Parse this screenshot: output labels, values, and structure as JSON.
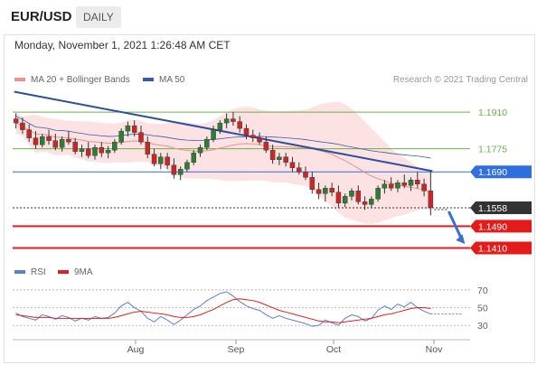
{
  "header": {
    "pair": "EUR/USD",
    "period": "DAILY"
  },
  "datetime": "Monday, November 1, 2021 1:26:48 AM CET",
  "copyright": "Research © 2021 Trading Central",
  "legend": {
    "ma20": {
      "label": "MA 20 + Bollinger Bands",
      "color": "#f0908f"
    },
    "ma50": {
      "label": "MA 50",
      "color": "#3b5ba5"
    },
    "rsi": {
      "label": "RSI",
      "color": "#5b7fd6"
    },
    "ma9": {
      "label": "9MA",
      "color": "#e02020"
    }
  },
  "chart_data": {
    "type": "candlestick",
    "y_range": [
      1.1385,
      1.199
    ],
    "levels": [
      {
        "value": 1.191,
        "label": "1.1910",
        "kind": "resistance",
        "color": "#6ab04c"
      },
      {
        "value": 1.1775,
        "label": "1.1775",
        "kind": "resistance",
        "color": "#6ab04c"
      },
      {
        "value": 1.169,
        "label": "1.1690",
        "kind": "pivot",
        "color": "#2f6fe0"
      },
      {
        "value": 1.1558,
        "label": "1.1558",
        "kind": "last",
        "color": "#333333"
      },
      {
        "value": 1.149,
        "label": "1.1490",
        "kind": "support",
        "color": "#e31b1b"
      },
      {
        "value": 1.141,
        "label": "1.1410",
        "kind": "support",
        "color": "#e31b1b"
      }
    ],
    "x_labels": [
      "Aug",
      "Sep",
      "Oct",
      "Nov"
    ],
    "ohlc": [
      [
        1.1885,
        1.1905,
        1.185,
        1.187
      ],
      [
        1.187,
        1.189,
        1.183,
        1.1845
      ],
      [
        1.1845,
        1.1865,
        1.18,
        1.1815
      ],
      [
        1.1815,
        1.184,
        1.1775,
        1.179
      ],
      [
        1.179,
        1.183,
        1.178,
        1.182
      ],
      [
        1.182,
        1.1845,
        1.179,
        1.1805
      ],
      [
        1.1805,
        1.183,
        1.177,
        1.178
      ],
      [
        1.178,
        1.182,
        1.1765,
        1.181
      ],
      [
        1.181,
        1.184,
        1.179,
        1.18
      ],
      [
        1.18,
        1.1815,
        1.1755,
        1.1765
      ],
      [
        1.1765,
        1.179,
        1.1745,
        1.1775
      ],
      [
        1.1775,
        1.18,
        1.174,
        1.175
      ],
      [
        1.175,
        1.179,
        1.1735,
        1.178
      ],
      [
        1.178,
        1.18,
        1.1745,
        1.176
      ],
      [
        1.176,
        1.1785,
        1.174,
        1.177
      ],
      [
        1.177,
        1.181,
        1.176,
        1.18
      ],
      [
        1.18,
        1.185,
        1.179,
        1.184
      ],
      [
        1.184,
        1.1875,
        1.182,
        1.186
      ],
      [
        1.186,
        1.188,
        1.182,
        1.1835
      ],
      [
        1.1835,
        1.186,
        1.179,
        1.18
      ],
      [
        1.18,
        1.182,
        1.174,
        1.1755
      ],
      [
        1.1755,
        1.1775,
        1.171,
        1.172
      ],
      [
        1.172,
        1.176,
        1.17,
        1.1745
      ],
      [
        1.1745,
        1.176,
        1.17,
        1.1715
      ],
      [
        1.1715,
        1.174,
        1.1665,
        1.168
      ],
      [
        1.168,
        1.171,
        1.166,
        1.17
      ],
      [
        1.17,
        1.1735,
        1.169,
        1.1725
      ],
      [
        1.1725,
        1.177,
        1.1715,
        1.176
      ],
      [
        1.176,
        1.179,
        1.1745,
        1.178
      ],
      [
        1.178,
        1.182,
        1.177,
        1.181
      ],
      [
        1.181,
        1.186,
        1.18,
        1.1845
      ],
      [
        1.1845,
        1.188,
        1.183,
        1.187
      ],
      [
        1.187,
        1.1905,
        1.185,
        1.1885
      ],
      [
        1.1885,
        1.191,
        1.186,
        1.1875
      ],
      [
        1.1875,
        1.1895,
        1.1835,
        1.185
      ],
      [
        1.185,
        1.1865,
        1.181,
        1.1825
      ],
      [
        1.1825,
        1.1845,
        1.18,
        1.1815
      ],
      [
        1.1815,
        1.1835,
        1.179,
        1.18
      ],
      [
        1.18,
        1.182,
        1.176,
        1.177
      ],
      [
        1.177,
        1.179,
        1.172,
        1.1735
      ],
      [
        1.1735,
        1.176,
        1.1715,
        1.1745
      ],
      [
        1.1745,
        1.176,
        1.171,
        1.1725
      ],
      [
        1.1725,
        1.1745,
        1.169,
        1.1705
      ],
      [
        1.1705,
        1.1725,
        1.168,
        1.169
      ],
      [
        1.169,
        1.171,
        1.166,
        1.167
      ],
      [
        1.167,
        1.169,
        1.161,
        1.1625
      ],
      [
        1.1625,
        1.165,
        1.159,
        1.161
      ],
      [
        1.161,
        1.164,
        1.158,
        1.163
      ],
      [
        1.163,
        1.165,
        1.16,
        1.1615
      ],
      [
        1.1615,
        1.164,
        1.156,
        1.1575
      ],
      [
        1.1575,
        1.161,
        1.156,
        1.16
      ],
      [
        1.16,
        1.163,
        1.1585,
        1.162
      ],
      [
        1.162,
        1.164,
        1.157,
        1.158
      ],
      [
        1.158,
        1.16,
        1.155,
        1.157
      ],
      [
        1.157,
        1.16,
        1.156,
        1.159
      ],
      [
        1.159,
        1.164,
        1.158,
        1.163
      ],
      [
        1.163,
        1.166,
        1.161,
        1.1645
      ],
      [
        1.1645,
        1.167,
        1.162,
        1.163
      ],
      [
        1.163,
        1.166,
        1.1615,
        1.165
      ],
      [
        1.165,
        1.168,
        1.163,
        1.164
      ],
      [
        1.164,
        1.167,
        1.162,
        1.166
      ],
      [
        1.166,
        1.169,
        1.163,
        1.1645
      ],
      [
        1.1645,
        1.1665,
        1.16,
        1.162
      ],
      [
        1.162,
        1.169,
        1.153,
        1.1558
      ]
    ],
    "rsi": [
      44,
      40,
      38,
      36,
      42,
      40,
      37,
      41,
      39,
      35,
      38,
      36,
      40,
      38,
      39,
      44,
      52,
      56,
      50,
      46,
      38,
      34,
      40,
      36,
      31,
      36,
      42,
      48,
      52,
      58,
      62,
      66,
      68,
      63,
      57,
      52,
      49,
      47,
      42,
      38,
      41,
      38,
      36,
      34,
      32,
      29,
      30,
      36,
      33,
      30,
      38,
      42,
      40,
      35,
      38,
      47,
      52,
      48,
      54,
      51,
      56,
      50,
      46,
      43
    ],
    "rsi_ma9": [
      42,
      41,
      40,
      39,
      39,
      39,
      38,
      38,
      38,
      38,
      38,
      38,
      38,
      38,
      38,
      39,
      41,
      43,
      45,
      46,
      45,
      44,
      43,
      42,
      40,
      39,
      39,
      40,
      42,
      45,
      48,
      52,
      56,
      59,
      60,
      59,
      58,
      56,
      53,
      50,
      47,
      45,
      43,
      41,
      39,
      37,
      35,
      34,
      34,
      33,
      34,
      35,
      36,
      37,
      38,
      40,
      42,
      43,
      45,
      47,
      49,
      50,
      50,
      49
    ],
    "rsi_levels": [
      70,
      50,
      30
    ]
  }
}
